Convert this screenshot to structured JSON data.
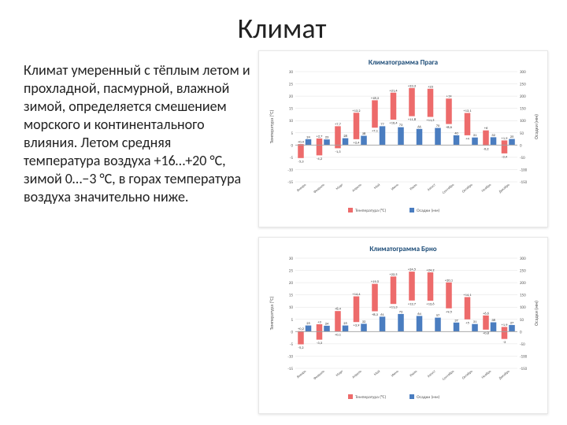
{
  "title": "Климат",
  "body_text": "Климат умеренный с тёплым летом и прохладной, пасмурной, влажной зимой, определяется смешением морского и континентального влияния. Летом средняя температура воздуха +16…+20 °C, зимой 0…−3 °C, в горах температура воздуха значительно ниже.",
  "chart1": {
    "type": "bar",
    "title": "Климатограмма Прага",
    "title_fontsize": 9,
    "title_color": "#1f4e79",
    "months": [
      "Январь",
      "Февраль",
      "Март",
      "Апрель",
      "Май",
      "Июнь",
      "Июль",
      "Август",
      "Сентябрь",
      "Октябрь",
      "Ноябрь",
      "Декабрь"
    ],
    "temp_high": [
      0.4,
      2.7,
      7.7,
      13.2,
      18.3,
      21.4,
      23.3,
      23,
      19,
      13.1,
      6,
      1.9
    ],
    "temp_low": [
      -5.3,
      -4.2,
      -1.3,
      2.4,
      7.1,
      10.4,
      11.8,
      11.5,
      8.6,
      4,
      -0.2,
      -3.4
    ],
    "temp_label_fontsize": 4.5,
    "precip": [
      24,
      23,
      28,
      38,
      77,
      73,
      66,
      70,
      40,
      31,
      32,
      25
    ],
    "precip_label_fontsize": 4.5,
    "temp_color": "#ed6b6b",
    "precip_color": "#4a7dc0",
    "grid_color": "#e0e0e0",
    "axis_color": "#a0a0a0",
    "label_color": "#555",
    "x_label_fontsize": 4.5,
    "y_left": {
      "label": "Температура (°C)",
      "min": -15,
      "max": 30,
      "step": 5
    },
    "y_right": {
      "label": "Осадки (мм)",
      "min": -150,
      "max": 300,
      "step": 50
    },
    "legend": [
      "Температура (°C)",
      "Осадки (мм)"
    ]
  },
  "chart2": {
    "type": "bar",
    "title": "Климатограмма Брно",
    "title_fontsize": 9,
    "title_color": "#1f4e79",
    "months": [
      "Январь",
      "Февраль",
      "Март",
      "Апрель",
      "Май",
      "Июнь",
      "Июль",
      "Август",
      "Сентябрь",
      "Октябрь",
      "Ноябрь",
      "Декабрь"
    ],
    "temp_high": [
      0.2,
      3,
      8.4,
      14.4,
      19.5,
      22.5,
      24.5,
      24.2,
      20.1,
      14.1,
      6.6,
      1.9
    ],
    "temp_low": [
      -5.2,
      -3.3,
      0.1,
      3.9,
      8.3,
      11.3,
      12.7,
      12.6,
      9.5,
      5,
      0.8,
      -3
    ],
    "temp_label_fontsize": 4.5,
    "precip": [
      25,
      24,
      25,
      32,
      61,
      72,
      64,
      57,
      37,
      31,
      38,
      27
    ],
    "precip_label_fontsize": 4.5,
    "temp_color": "#ed6b6b",
    "precip_color": "#4a7dc0",
    "grid_color": "#e0e0e0",
    "axis_color": "#a0a0a0",
    "label_color": "#555",
    "x_label_fontsize": 4.5,
    "y_left": {
      "label": "Температура (°C)",
      "min": -15,
      "max": 30,
      "step": 5
    },
    "y_right": {
      "label": "Осадки (мм)",
      "min": -150,
      "max": 300,
      "step": 50
    },
    "legend": [
      "Температура (°C)",
      "Осадки (мм)"
    ]
  }
}
